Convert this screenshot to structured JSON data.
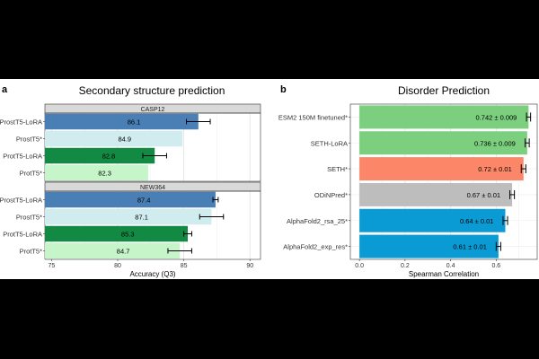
{
  "chart_data": [
    {
      "type": "bar",
      "orientation": "horizontal",
      "panel_letter": "a",
      "title": "Secondary structure prediction",
      "xlabel": "Accuracy (Q3)",
      "ylabel": "",
      "xlim": [
        74.5,
        90.8
      ],
      "xticks": [
        "75",
        "80",
        "85",
        "90"
      ],
      "grid": true,
      "facets": [
        {
          "label": "CASP12",
          "categories": [
            "ProstT5-LoRA",
            "ProstT5*",
            "ProtT5-LoRA",
            "ProtT5*"
          ],
          "values": [
            86.1,
            84.9,
            82.8,
            82.3
          ],
          "errors": [
            0.9,
            null,
            0.9,
            null
          ],
          "labels": [
            "86.1",
            "84.9",
            "82.8",
            "82.3"
          ],
          "colors": [
            "#4a7fb5",
            "#d1ecee",
            "#138a44",
            "#c5f5c8"
          ]
        },
        {
          "label": "NEW364",
          "categories": [
            "ProstT5-LoRA",
            "ProstT5*",
            "ProtT5-LoRA",
            "ProtT5*"
          ],
          "values": [
            87.4,
            87.1,
            85.3,
            84.7
          ],
          "errors": [
            0.2,
            0.9,
            0.3,
            0.9
          ],
          "labels": [
            "87.4",
            "87.1",
            "85.3",
            "84.7"
          ],
          "colors": [
            "#4a7fb5",
            "#d1ecee",
            "#138a44",
            "#c5f5c8"
          ]
        }
      ]
    },
    {
      "type": "bar",
      "orientation": "horizontal",
      "panel_letter": "b",
      "title": "Disorder Prediction",
      "xlabel": "Spearman Correlation",
      "ylabel": "",
      "xlim": [
        -0.04,
        0.78
      ],
      "xticks": [
        "0.0",
        "0.2",
        "0.4",
        "0.6"
      ],
      "grid": true,
      "categories": [
        "ESM2 150M finetuned*",
        "SETH-LoRA",
        "SETH*",
        "ODiNPred*",
        "AlphaFold2_rsa_25*",
        "AlphaFold2_exp_res*"
      ],
      "values": [
        0.742,
        0.736,
        0.72,
        0.67,
        0.64,
        0.61
      ],
      "errors": [
        0.009,
        0.009,
        0.01,
        0.01,
        0.01,
        0.01
      ],
      "labels": [
        "0.742 ± 0.009",
        "0.736 ± 0.009",
        "0.72 ± 0.01",
        "0.67 ± 0.01",
        "0.64 ± 0.01",
        "0.61 ± 0.01"
      ],
      "colors": [
        "#7bcf7e",
        "#7bcf7e",
        "#fb8768",
        "#bdbdbd",
        "#0a9bd4",
        "#0a9bd4"
      ]
    }
  ]
}
